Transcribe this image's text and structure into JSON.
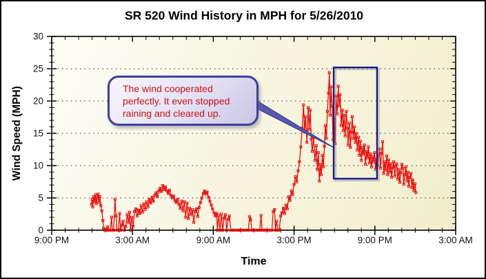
{
  "window": {
    "title": "SR 520 Wind History in MPH for 5/26/2010"
  },
  "colors": {
    "series": "#ee0808",
    "highlight_box": "#1a1a8e",
    "grid": "#3a3a3a",
    "callout_text": "#cc1111",
    "callout_border": "#3d3da0",
    "plot_bg_top": "#fdfdf6",
    "plot_bg_bottom": "#f1eecd"
  },
  "callout": {
    "lines": [
      "The wind cooperated",
      "perfectly. It even stopped",
      "raining and cleared up."
    ]
  },
  "chart_data": {
    "type": "line",
    "title": "SR 520 Wind History in MPH for 5/26/2010",
    "xlabel": "Time",
    "ylabel": "Wind Speed (MPH)",
    "x_unit": "hours after 9:00 PM (5/25) ; x axis spans 9:00 PM to 3:00 AM two nights later",
    "xlim": [
      0,
      30
    ],
    "ylim": [
      0,
      30
    ],
    "x_major_tick_hours": [
      0,
      6,
      12,
      18,
      24,
      30
    ],
    "x_tick_labels": [
      "9:00 PM",
      "3:00 AM",
      "9:00 AM",
      "3:00 PM",
      "9:00 PM",
      "3:00 AM"
    ],
    "x_minor_tick_step_hours": 1,
    "y_ticks": [
      0,
      5,
      10,
      15,
      20,
      25,
      30
    ],
    "y_minor_tick_step": 1,
    "grid_y_dotted": [
      5,
      10,
      15,
      20,
      25
    ],
    "legend": "none",
    "series": [
      {
        "name": "Wind Speed (MPH)",
        "color": "#ee0808",
        "marker": "open-square",
        "points": [
          [
            2.95,
            4.0
          ],
          [
            3.0,
            4.8
          ],
          [
            3.05,
            3.6
          ],
          [
            3.1,
            5.2
          ],
          [
            3.18,
            4.4
          ],
          [
            3.25,
            5.5
          ],
          [
            3.3,
            4.1
          ],
          [
            3.38,
            5.0
          ],
          [
            3.45,
            5.6
          ],
          [
            3.5,
            4.3
          ],
          [
            3.58,
            5.2
          ],
          [
            3.65,
            3.8
          ],
          [
            3.72,
            3.0
          ],
          [
            3.8,
            1.5
          ],
          [
            3.85,
            0.3
          ],
          [
            3.95,
            0
          ],
          [
            4.05,
            0
          ],
          [
            4.15,
            0.5
          ],
          [
            4.25,
            0
          ],
          [
            4.35,
            0
          ],
          [
            4.45,
            2.0
          ],
          [
            4.5,
            0
          ],
          [
            4.6,
            0
          ],
          [
            4.7,
            4.8
          ],
          [
            4.78,
            2.2
          ],
          [
            4.85,
            0
          ],
          [
            4.95,
            0
          ],
          [
            5.05,
            2.6
          ],
          [
            5.12,
            0
          ],
          [
            5.2,
            0.8
          ],
          [
            5.3,
            1.4
          ],
          [
            5.4,
            0
          ],
          [
            5.5,
            0.6
          ],
          [
            5.6,
            2.4
          ],
          [
            5.7,
            1.2
          ],
          [
            5.78,
            2.8
          ],
          [
            5.85,
            0
          ],
          [
            5.95,
            2.0
          ],
          [
            6.05,
            0.6
          ],
          [
            6.15,
            2.9
          ],
          [
            6.25,
            3.3
          ],
          [
            6.35,
            2.2
          ],
          [
            6.45,
            3.1
          ],
          [
            6.55,
            2.6
          ],
          [
            6.65,
            3.8
          ],
          [
            6.75,
            2.8
          ],
          [
            6.85,
            4.1
          ],
          [
            6.95,
            3.2
          ],
          [
            7.05,
            4.4
          ],
          [
            7.15,
            3.6
          ],
          [
            7.25,
            4.8
          ],
          [
            7.35,
            4.2
          ],
          [
            7.45,
            5.1
          ],
          [
            7.55,
            4.5
          ],
          [
            7.65,
            5.4
          ],
          [
            7.75,
            5.8
          ],
          [
            7.85,
            5.2
          ],
          [
            7.95,
            6.1
          ],
          [
            8.05,
            6.5
          ],
          [
            8.15,
            6.0
          ],
          [
            8.25,
            6.9
          ],
          [
            8.35,
            6.3
          ],
          [
            8.45,
            6.7
          ],
          [
            8.55,
            6.1
          ],
          [
            8.65,
            5.7
          ],
          [
            8.75,
            6.2
          ],
          [
            8.85,
            5.4
          ],
          [
            8.95,
            5.0
          ],
          [
            9.05,
            5.3
          ],
          [
            9.15,
            4.6
          ],
          [
            9.25,
            4.3
          ],
          [
            9.35,
            4.8
          ],
          [
            9.45,
            4.0
          ],
          [
            9.55,
            3.4
          ],
          [
            9.65,
            4.5
          ],
          [
            9.75,
            3.0
          ],
          [
            9.85,
            4.4
          ],
          [
            9.95,
            2.0
          ],
          [
            10.05,
            4.2
          ],
          [
            10.15,
            1.8
          ],
          [
            10.25,
            3.4
          ],
          [
            10.35,
            2.4
          ],
          [
            10.45,
            3.2
          ],
          [
            10.55,
            1.2
          ],
          [
            10.65,
            2.9
          ],
          [
            10.75,
            3.3
          ],
          [
            10.85,
            2.1
          ],
          [
            10.95,
            3.5
          ],
          [
            11.05,
            4.3
          ],
          [
            11.15,
            5.0
          ],
          [
            11.25,
            5.7
          ],
          [
            11.35,
            6.1
          ],
          [
            11.45,
            5.6
          ],
          [
            11.55,
            5.9
          ],
          [
            11.65,
            5.1
          ],
          [
            11.75,
            4.5
          ],
          [
            11.85,
            3.9
          ],
          [
            11.95,
            3.3
          ],
          [
            12.05,
            2.7
          ],
          [
            12.15,
            2.2
          ],
          [
            12.25,
            2.6
          ],
          [
            12.3,
            0
          ],
          [
            12.4,
            2.3
          ],
          [
            12.5,
            0
          ],
          [
            12.6,
            2.5
          ],
          [
            12.7,
            0
          ],
          [
            12.8,
            1.9
          ],
          [
            12.9,
            2.4
          ],
          [
            13.0,
            0
          ],
          [
            13.1,
            1.7
          ],
          [
            13.2,
            2.2
          ],
          [
            13.3,
            0
          ],
          [
            13.45,
            0
          ],
          [
            13.6,
            0
          ],
          [
            13.75,
            0
          ],
          [
            13.9,
            0
          ],
          [
            14.05,
            0
          ],
          [
            14.2,
            0
          ],
          [
            14.35,
            0
          ],
          [
            14.5,
            0
          ],
          [
            14.6,
            0
          ],
          [
            14.7,
            2.1
          ],
          [
            14.78,
            1.6
          ],
          [
            14.85,
            0
          ],
          [
            15.0,
            0
          ],
          [
            15.15,
            0
          ],
          [
            15.3,
            0
          ],
          [
            15.45,
            0
          ],
          [
            15.55,
            2.3
          ],
          [
            15.62,
            0
          ],
          [
            15.75,
            0
          ],
          [
            15.9,
            0
          ],
          [
            16.05,
            0
          ],
          [
            16.2,
            0
          ],
          [
            16.35,
            0
          ],
          [
            16.45,
            2.9
          ],
          [
            16.55,
            3.2
          ],
          [
            16.62,
            0
          ],
          [
            16.7,
            1.4
          ],
          [
            16.8,
            0
          ],
          [
            16.9,
            0
          ],
          [
            17.0,
            2.2
          ],
          [
            17.1,
            2.7
          ],
          [
            17.2,
            3.4
          ],
          [
            17.3,
            2.6
          ],
          [
            17.4,
            3.9
          ],
          [
            17.5,
            3.3
          ],
          [
            17.6,
            5.2
          ],
          [
            17.7,
            4.6
          ],
          [
            17.8,
            6.1
          ],
          [
            17.9,
            5.5
          ],
          [
            18.0,
            7.1
          ],
          [
            18.1,
            8.3
          ],
          [
            18.2,
            7.5
          ],
          [
            18.3,
            9.2
          ],
          [
            18.4,
            10.6
          ],
          [
            18.5,
            12.9
          ],
          [
            18.6,
            15.8
          ],
          [
            18.7,
            19.4
          ],
          [
            18.78,
            15.2
          ],
          [
            18.85,
            17.6
          ],
          [
            18.95,
            13.6
          ],
          [
            19.05,
            19.0
          ],
          [
            19.12,
            15.6
          ],
          [
            19.2,
            18.6
          ],
          [
            19.28,
            14.1
          ],
          [
            19.35,
            12.2
          ],
          [
            19.45,
            14.4
          ],
          [
            19.55,
            10.8
          ],
          [
            19.65,
            13.1
          ],
          [
            19.72,
            9.4
          ],
          [
            19.8,
            12.0
          ],
          [
            19.88,
            7.6
          ],
          [
            19.95,
            10.2
          ],
          [
            20.02,
            8.6
          ],
          [
            20.1,
            11.6
          ],
          [
            20.18,
            9.8
          ],
          [
            20.25,
            13.0
          ],
          [
            20.32,
            16.2
          ],
          [
            20.4,
            14.2
          ],
          [
            20.48,
            18.4
          ],
          [
            20.55,
            21.2
          ],
          [
            20.62,
            24.4
          ],
          [
            20.68,
            17.8
          ],
          [
            20.75,
            22.2
          ],
          [
            20.82,
            19.2
          ],
          [
            20.9,
            14.0
          ],
          [
            20.98,
            17.2
          ],
          [
            21.05,
            13.4
          ],
          [
            21.12,
            20.8
          ],
          [
            21.2,
            18.0
          ],
          [
            21.28,
            22.3
          ],
          [
            21.35,
            19.2
          ],
          [
            21.42,
            21.0
          ],
          [
            21.5,
            16.2
          ],
          [
            21.58,
            18.6
          ],
          [
            21.65,
            15.4
          ],
          [
            21.72,
            17.8
          ],
          [
            21.8,
            14.6
          ],
          [
            21.88,
            18.4
          ],
          [
            21.95,
            15.8
          ],
          [
            22.02,
            13.2
          ],
          [
            22.1,
            16.6
          ],
          [
            22.18,
            12.8
          ],
          [
            22.25,
            15.2
          ],
          [
            22.32,
            17.6
          ],
          [
            22.4,
            14.2
          ],
          [
            22.48,
            16.0
          ],
          [
            22.55,
            13.6
          ],
          [
            22.62,
            15.0
          ],
          [
            22.7,
            12.4
          ],
          [
            22.78,
            14.4
          ],
          [
            22.85,
            11.6
          ],
          [
            22.92,
            13.8
          ],
          [
            23.0,
            10.8
          ],
          [
            23.08,
            12.8
          ],
          [
            23.15,
            11.8
          ],
          [
            23.22,
            13.2
          ],
          [
            23.3,
            10.2
          ],
          [
            23.38,
            12.2
          ],
          [
            23.45,
            11.2
          ],
          [
            23.52,
            12.9
          ],
          [
            23.6,
            10.4
          ],
          [
            23.68,
            11.8
          ],
          [
            23.75,
            9.8
          ],
          [
            23.82,
            11.4
          ],
          [
            23.9,
            10.6
          ],
          [
            23.98,
            12.0
          ],
          [
            24.05,
            9.4
          ],
          [
            24.12,
            11.0
          ],
          [
            24.2,
            10.0
          ],
          [
            24.28,
            11.6
          ],
          [
            24.35,
            12.6
          ],
          [
            24.42,
            9.6
          ],
          [
            24.5,
            11.9
          ],
          [
            24.58,
            13.7
          ],
          [
            24.65,
            8.8
          ],
          [
            24.72,
            10.6
          ],
          [
            24.8,
            9.3
          ],
          [
            24.88,
            11.5
          ],
          [
            24.95,
            8.6
          ],
          [
            25.02,
            10.9
          ],
          [
            25.1,
            9.0
          ],
          [
            25.18,
            10.3
          ],
          [
            25.25,
            8.2
          ],
          [
            25.32,
            9.7
          ],
          [
            25.4,
            10.6
          ],
          [
            25.48,
            8.4
          ],
          [
            25.55,
            9.9
          ],
          [
            25.62,
            10.3
          ],
          [
            25.7,
            7.9
          ],
          [
            25.78,
            9.4
          ],
          [
            25.85,
            7.4
          ],
          [
            25.92,
            8.9
          ],
          [
            26.0,
            10.2
          ],
          [
            26.08,
            9.6
          ],
          [
            26.15,
            7.1
          ],
          [
            26.22,
            8.6
          ],
          [
            26.3,
            9.8
          ],
          [
            26.38,
            7.6
          ],
          [
            26.45,
            9.0
          ],
          [
            26.52,
            6.8
          ],
          [
            26.6,
            8.2
          ],
          [
            26.68,
            8.8
          ],
          [
            26.75,
            6.6
          ],
          [
            26.82,
            7.8
          ],
          [
            26.9,
            6.1
          ],
          [
            26.98,
            7.2
          ],
          [
            27.05,
            5.8
          ]
        ]
      }
    ],
    "annotations": {
      "callout_text": "The wind cooperated perfectly. It even stopped raining and cleared up.",
      "highlight_box": {
        "t_from": 20.94,
        "t_to": 24.16,
        "v_from": 7.98,
        "v_to": 25.2
      }
    }
  }
}
